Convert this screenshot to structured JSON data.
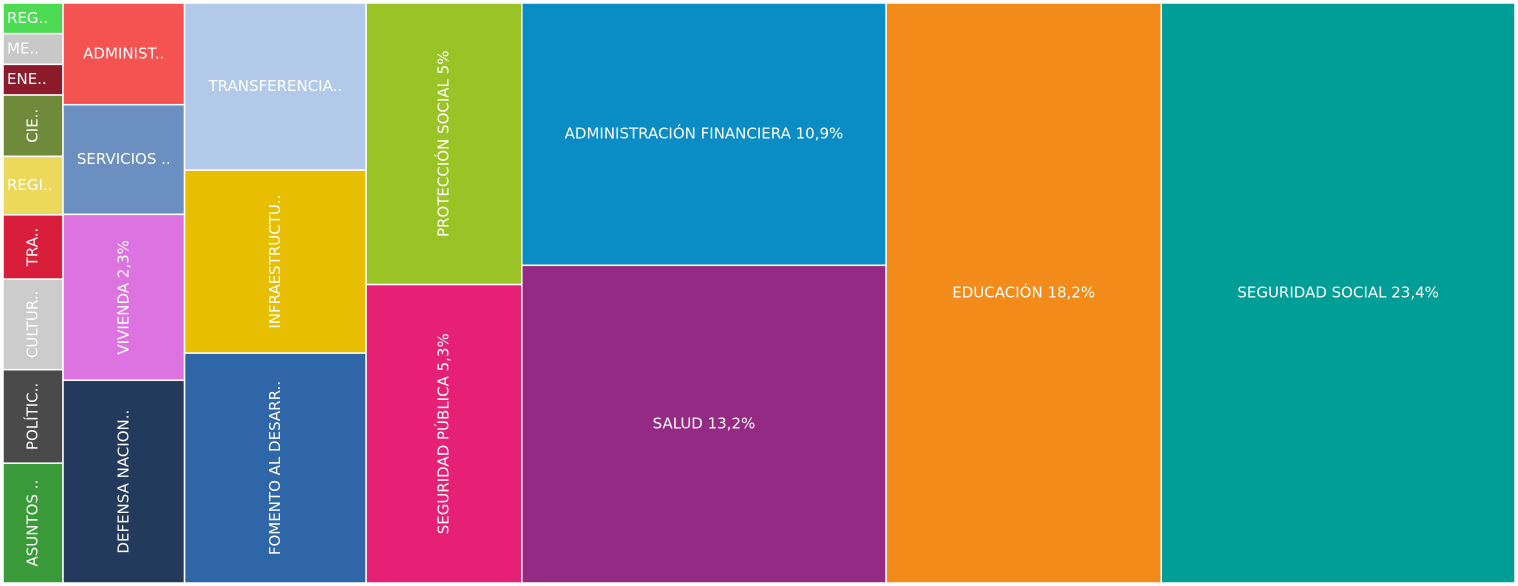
{
  "chart_data": {
    "type": "treemap",
    "categories": [
      "REG..",
      "ME..",
      "ENE..",
      "CIE..",
      "REGI..",
      "TRA..",
      "CULTUR..",
      "POLÍTIC..",
      "ASUNTOS ..",
      "ADMINIST..",
      "SERVICIOS ..",
      "VIVIENDA 2,3%",
      "DEFENSA NACION..",
      "TRANSFERENCIA..",
      "INFRAESTRUCTU..",
      "FOMENTO AL DESARR..",
      "PROTECCIÓN SOCIAL 5%",
      "SEGURIDAD PÚBLICA 5,3%",
      "ADMINISTRACIÓN FINANCIERA 10,9%",
      "SALUD 13,2%",
      "EDUCACIÓN 18,2%",
      "SEGURIDAD SOCIAL 23,4%"
    ],
    "values": [
      0.21,
      0.21,
      0.21,
      0.42,
      0.4,
      0.44,
      0.62,
      0.64,
      0.82,
      1.41,
      1.52,
      2.3,
      2.81,
      3.46,
      3.79,
      4.76,
      5,
      5.3,
      10.9,
      13.2,
      18.2,
      23.4
    ],
    "colors": [
      "#4cdb52",
      "#c8c8c8",
      "#8b1a2b",
      "#6f8a3a",
      "#ecd85a",
      "#d81e3a",
      "#cccccc",
      "#4a4a4a",
      "#3a9a3a",
      "#f55252",
      "#6a8fc0",
      "#dc73e0",
      "#243a5c",
      "#b3c9ea",
      "#e8be00",
      "#2f66a8",
      "#9ac325",
      "#e62175",
      "#0a8cc5",
      "#952a85",
      "#f28b1a",
      "#009e96"
    ]
  }
}
